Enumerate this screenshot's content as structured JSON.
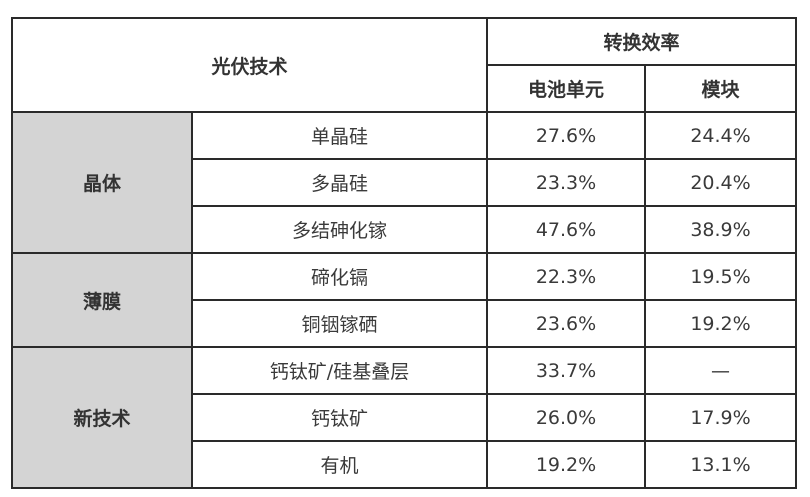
{
  "header": {
    "technology": "光伏技术",
    "efficiency": "转换效率",
    "cell": "电池单元",
    "module": "模块"
  },
  "groups": [
    {
      "category": "晶体",
      "rows": [
        {
          "tech": "单晶硅",
          "cell": "27.6%",
          "module": "24.4%"
        },
        {
          "tech": "多晶硅",
          "cell": "23.3%",
          "module": "20.4%"
        },
        {
          "tech": "多结砷化镓",
          "cell": "47.6%",
          "module": "38.9%"
        }
      ]
    },
    {
      "category": "薄膜",
      "rows": [
        {
          "tech": "碲化镉",
          "cell": "22.3%",
          "module": "19.5%"
        },
        {
          "tech": "铜铟镓硒",
          "cell": "23.6%",
          "module": "19.2%"
        }
      ]
    },
    {
      "category": "新技术",
      "rows": [
        {
          "tech": "钙钛矿/硅基叠层",
          "cell": "33.7%",
          "module": "—"
        },
        {
          "tech": "钙钛矿",
          "cell": "26.0%",
          "module": "17.9%"
        },
        {
          "tech": "有机",
          "cell": "19.2%",
          "module": "13.1%"
        }
      ]
    }
  ],
  "colors": {
    "category_bg": "#d4d4d4",
    "border": "#2a2a2a",
    "text": "#3a3a3a"
  }
}
